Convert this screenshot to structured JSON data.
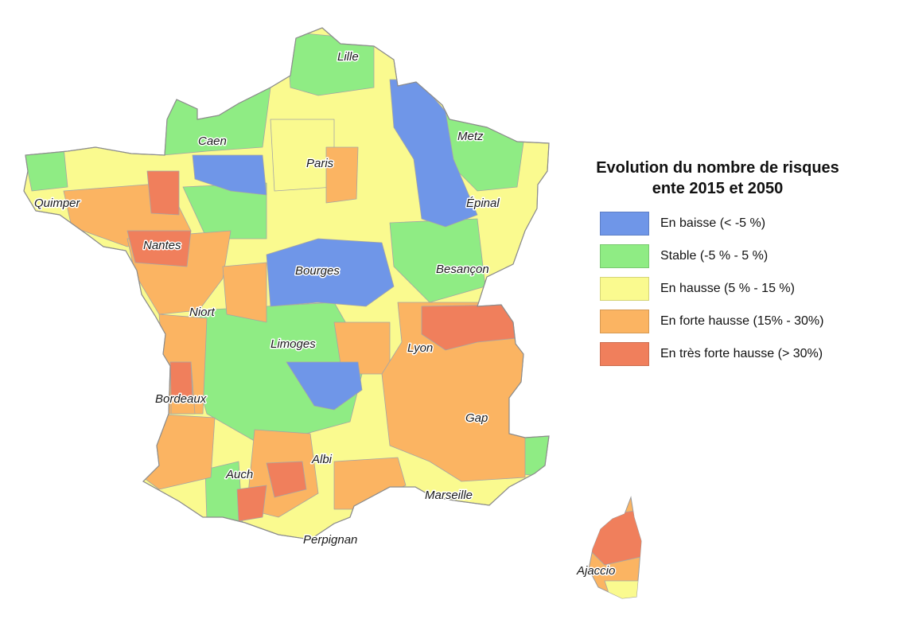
{
  "legend": {
    "title_line1": "Evolution du nombre de risques",
    "title_line2": "ente 2015 et 2050",
    "items": [
      {
        "label": "En baisse (< -5 %)",
        "color": "#6f96e8"
      },
      {
        "label": "Stable (-5 % - 5 %)",
        "color": "#8fec84"
      },
      {
        "label": "En hausse (5 % - 15 %)",
        "color": "#fafa8f"
      },
      {
        "label": "En forte hausse (15% - 30%)",
        "color": "#fbb462"
      },
      {
        "label": "En très forte hausse (> 30%)",
        "color": "#f07f5c"
      }
    ]
  },
  "cities": {
    "lille": "Lille",
    "caen": "Caen",
    "metz": "Metz",
    "paris": "Paris",
    "quimper": "Quimper",
    "epinal": "Épinal",
    "nantes": "Nantes",
    "besancon": "Besançon",
    "bourges": "Bourges",
    "niort": "Niort",
    "lyon": "Lyon",
    "limoges": "Limoges",
    "bordeaux": "Bordeaux",
    "gap": "Gap",
    "albi": "Albi",
    "auch": "Auch",
    "marseille": "Marseille",
    "perpignan": "Perpignan",
    "ajaccio": "Ajaccio"
  }
}
